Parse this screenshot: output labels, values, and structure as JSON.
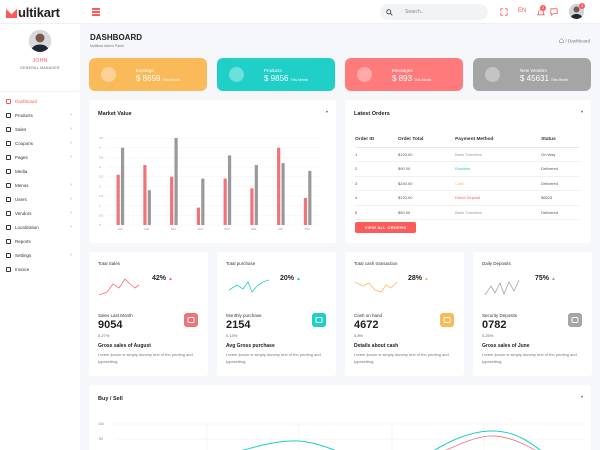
{
  "brand": {
    "text": "ultikart",
    "accent": "#ff5a5a"
  },
  "topbar": {
    "search_placeholder": "Search..",
    "language": "EN",
    "notification_count": "2",
    "chat_count": "3"
  },
  "sidebar": {
    "profile_name": "JOHN",
    "profile_role": "GENERAL MANAGER",
    "items": [
      {
        "label": "Dashboard",
        "icon": "home-icon",
        "active": true,
        "chevron": false
      },
      {
        "label": "Products",
        "icon": "box-icon",
        "chevron": true
      },
      {
        "label": "Sales",
        "icon": "dollar-icon",
        "chevron": true
      },
      {
        "label": "Coupons",
        "icon": "tag-icon",
        "chevron": true
      },
      {
        "label": "Pages",
        "icon": "clipboard-icon",
        "chevron": true
      },
      {
        "label": "Media",
        "icon": "camera-icon",
        "chevron": false
      },
      {
        "label": "Menus",
        "icon": "align-left-icon",
        "chevron": true
      },
      {
        "label": "Users",
        "icon": "user-plus-icon",
        "chevron": true
      },
      {
        "label": "Vendors",
        "icon": "users-icon",
        "chevron": true
      },
      {
        "label": "Localization",
        "icon": "chrome-icon",
        "chevron": true
      },
      {
        "label": "Reports",
        "icon": "bar-chart-icon",
        "chevron": false
      },
      {
        "label": "Settings",
        "icon": "settings-icon",
        "chevron": true
      },
      {
        "label": "Invoice",
        "icon": "archive-icon",
        "chevron": false
      }
    ]
  },
  "page": {
    "title": "DASHBOARD",
    "subtitle": "Multikart Admin Panel",
    "breadcrumb": "Dashboard"
  },
  "stats": [
    {
      "label": "Earnings",
      "value": "$ 8659",
      "unit": "This Month",
      "color": "#fbba5a",
      "icon": "navigation-icon"
    },
    {
      "label": "Products",
      "value": "$ 9856",
      "unit": "This Month",
      "color": "#1fcfc8",
      "icon": "box-icon"
    },
    {
      "label": "Messages",
      "value": "$ 893",
      "unit": "This Month",
      "color": "#ff7b7b",
      "icon": "message-icon"
    },
    {
      "label": "New Vendors",
      "value": "$ 45631",
      "unit": "This Month",
      "color": "#a5a5a5",
      "icon": "users-icon"
    }
  ],
  "market": {
    "title": "Market Value",
    "chart_data": {
      "type": "bar",
      "categories": [
        "100",
        "200",
        "300",
        "400",
        "500",
        "600",
        "700",
        "800"
      ],
      "ylim": [
        0,
        4.5
      ],
      "yticks": [
        "0",
        "0.5",
        "1",
        "1.5",
        "2",
        "2.5",
        "3",
        "3.5",
        "4",
        "4.5"
      ],
      "series": [
        {
          "values": [
            2.6,
            3.1,
            2.5,
            0.9,
            2.4,
            1.9,
            4.0,
            1.4
          ],
          "color": "#f0727a"
        },
        {
          "values": [
            4.0,
            1.8,
            4.5,
            2.4,
            3.6,
            3.1,
            3.2,
            2.8
          ],
          "color": "#999999"
        }
      ]
    }
  },
  "orders": {
    "title": "Latest Orders",
    "headers": [
      "Order ID",
      "Order Total",
      "Payment Method",
      "Status"
    ],
    "rows": [
      {
        "id": "1",
        "total": "$120.00",
        "method": "Bank Transfers",
        "method_color": "#999999",
        "status": "On Way"
      },
      {
        "id": "2",
        "total": "$90.00",
        "method": "Ewallets",
        "method_color": "#1fcfc8",
        "status": "Delivered"
      },
      {
        "id": "3",
        "total": "$240.00",
        "method": "Cash",
        "method_color": "#fbba5a",
        "status": "Delivered"
      },
      {
        "id": "4",
        "total": "$120.00",
        "method": "Direct Deposit",
        "method_color": "#ff5a5a",
        "status": "$6523"
      },
      {
        "id": "5",
        "total": "$50.00",
        "method": "Bank Transfers",
        "method_color": "#999999",
        "status": "Delivered"
      }
    ],
    "button": "VIEW ALL ORDERS"
  },
  "small_cards": [
    {
      "label": "Total Sales",
      "pct": "42%",
      "color": "#ff6b6b",
      "sub": "Sales Last Month",
      "value": "9054",
      "small": "0.27%",
      "heading": "Gross sales of August",
      "desc": "Lorem Ipsum is simply dummy text of the printing and typesetting.",
      "icon": "shopping-bag-icon"
    },
    {
      "label": "Total purchase",
      "pct": "20%",
      "color": "#1fcfc8",
      "sub": "Monthly purchase",
      "value": "2154",
      "small": "0.13%",
      "heading": "Avg Gross purchase",
      "desc": "Lorem Ipsum is simply dummy text of the printing and typesetting.",
      "icon": "credit-card-icon"
    },
    {
      "label": "Total cash transaction",
      "pct": "28%",
      "color": "#fbba5a",
      "sub": "Cash on hand",
      "value": "4672",
      "small": "0.8%",
      "heading": "Details about cash",
      "desc": "Lorem Ipsum is simply dummy text of the printing and typesetting.",
      "icon": "shopping-cart-icon"
    },
    {
      "label": "Daily Deposits",
      "pct": "75%",
      "color": "#a5a5a5",
      "sub": "Security Deposits",
      "value": "0782",
      "small": "0.25%",
      "heading": "Gross sales of June",
      "desc": "Lorem Ipsum is simply dummy text of the printing and typesetting.",
      "icon": "calendar-icon"
    }
  ],
  "buysell": {
    "title": "Buy / Sell",
    "tick_top": "100",
    "tick_second": "80"
  }
}
